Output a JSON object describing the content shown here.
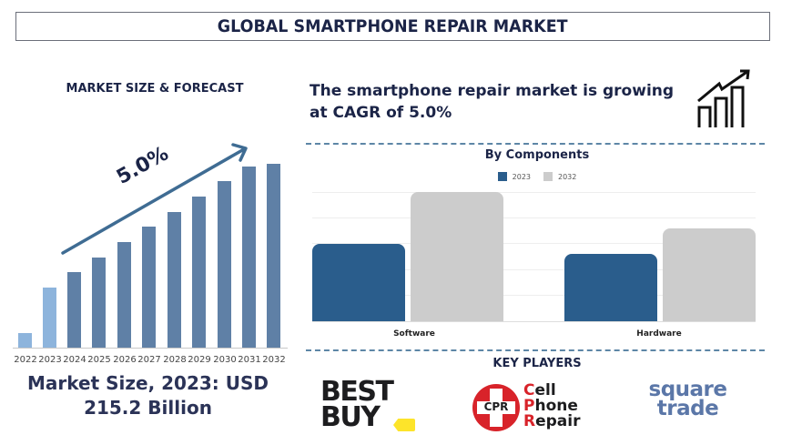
{
  "header": {
    "title": "GLOBAL SMARTPHONE REPAIR MARKET"
  },
  "left_panel": {
    "heading": "MARKET SIZE & FORECAST",
    "cagr_label": "5.0%",
    "market_size_line1": "Market Size, 2023: USD",
    "market_size_line2": "215.2 Billion"
  },
  "right_panel": {
    "cagr_statement_line1": "The smartphone repair market is growing",
    "cagr_statement_line2": "at CAGR of 5.0%",
    "icon": "growth-chart-icon",
    "components_title": "By Components",
    "legend": [
      {
        "label": "2023",
        "color": "#2a5d8c"
      },
      {
        "label": "2032",
        "color": "#cccccc"
      }
    ],
    "categories": [
      "Software",
      "Hardware"
    ],
    "key_players_title": "KEY PLAYERS",
    "key_players": [
      {
        "name": "BEST BUY",
        "line1": "BEST",
        "line2": "BUY",
        "color": "#1d1d1f",
        "accent": "#fde42a"
      },
      {
        "name": "CPR Cell Phone Repair",
        "badge": "CPR",
        "line1": "Cell",
        "line2": "Phone",
        "line3": "Repair",
        "color": "#d8232a"
      },
      {
        "name": "square trade",
        "line1": "square",
        "line2": "trade",
        "color": "#5b77a8",
        "accent": "#d8232a"
      }
    ]
  },
  "colors": {
    "title": "#1b2447",
    "bar_historic": "#8db4dc",
    "bar_forecast": "#5f80a6",
    "arrow": "#3f6c93",
    "dash": "#5d86a6"
  },
  "chart_data": [
    {
      "type": "bar",
      "title": "MARKET SIZE & FORECAST",
      "categories": [
        "2022",
        "2023",
        "2024",
        "2025",
        "2026",
        "2027",
        "2028",
        "2029",
        "2030",
        "2031",
        "2032"
      ],
      "values": [
        8,
        33,
        42,
        50,
        58,
        67,
        75,
        83,
        92,
        100,
        102
      ],
      "value_units": "relative bar height (no axis shown)",
      "annotation": "5.0% CAGR arrow",
      "xlabel": "",
      "ylabel": "",
      "grid": false,
      "legend": "none"
    },
    {
      "type": "bar",
      "title": "By Components",
      "categories": [
        "Software",
        "Hardware"
      ],
      "series": [
        {
          "name": "2023",
          "values": [
            3,
            2.6
          ]
        },
        {
          "name": "2032",
          "values": [
            5,
            3.6
          ]
        }
      ],
      "ylim": [
        0,
        5
      ],
      "grid": true,
      "legend_position": "top",
      "value_units": "relative (gridlines unlabeled)"
    }
  ]
}
